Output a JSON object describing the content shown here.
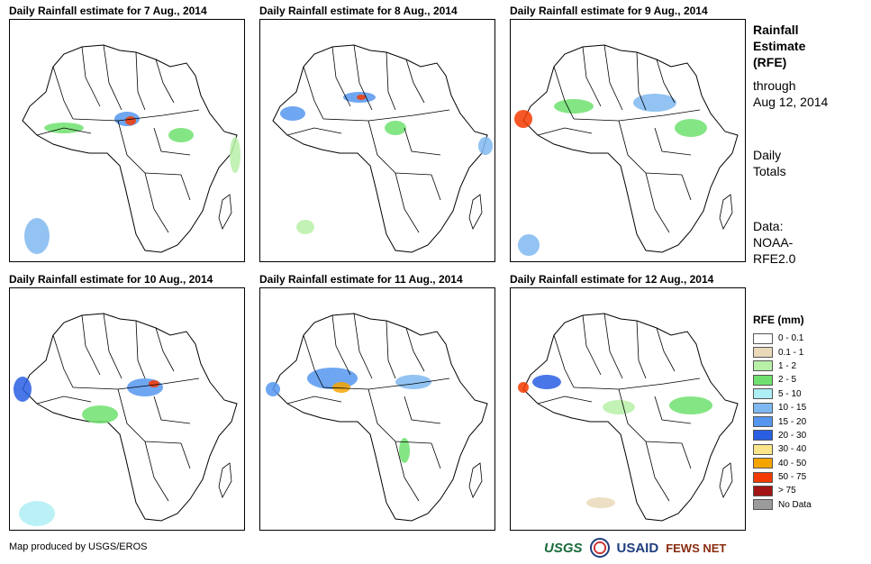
{
  "panels": [
    {
      "title": "Daily Rainfall estimate for 7 Aug., 2014"
    },
    {
      "title": "Daily Rainfall estimate for 8 Aug., 2014"
    },
    {
      "title": "Daily Rainfall estimate for 9 Aug., 2014"
    },
    {
      "title": "Daily Rainfall estimate for 10 Aug., 2014"
    },
    {
      "title": "Daily Rainfall estimate for 11 Aug., 2014"
    },
    {
      "title": "Daily Rainfall estimate for 12 Aug., 2014"
    }
  ],
  "side": {
    "heading_line1": "Rainfall",
    "heading_line2": "Estimate",
    "heading_line3": "(RFE)",
    "through_line1": "through",
    "through_line2": "Aug 12, 2014",
    "daily_line1": "Daily",
    "daily_line2": "Totals",
    "data_line1": "Data:",
    "data_line2": "NOAA-",
    "data_line3": "RFE2.0"
  },
  "legend": {
    "title": "RFE (mm)",
    "items": [
      {
        "label": "0 - 0.1",
        "color": "#ffffff"
      },
      {
        "label": "0.1 - 1",
        "color": "#e9d9b9"
      },
      {
        "label": "1 - 2",
        "color": "#b8f0a8"
      },
      {
        "label": "2 - 5",
        "color": "#6fe06f"
      },
      {
        "label": "5 - 10",
        "color": "#aeeef5"
      },
      {
        "label": "10 - 15",
        "color": "#7fb8f0"
      },
      {
        "label": "15 - 20",
        "color": "#5596ee"
      },
      {
        "label": "20 - 30",
        "color": "#2a5fe3"
      },
      {
        "label": "30 - 40",
        "color": "#fbe58a"
      },
      {
        "label": "40 - 50",
        "color": "#f6a500"
      },
      {
        "label": "50 - 75",
        "color": "#f53a00"
      },
      {
        "label": "> 75",
        "color": "#a31515"
      },
      {
        "label": "No Data",
        "color": "#9c9c9c"
      }
    ]
  },
  "footer": {
    "credit": "Map produced by USGS/EROS",
    "logos": [
      "USGS",
      "USAID",
      "FEWS NET"
    ]
  },
  "icons": {
    "usgs": "usgs-logo-icon",
    "usaid_seal": "usaid-seal-icon",
    "fews": "fews-net-logo-icon"
  }
}
